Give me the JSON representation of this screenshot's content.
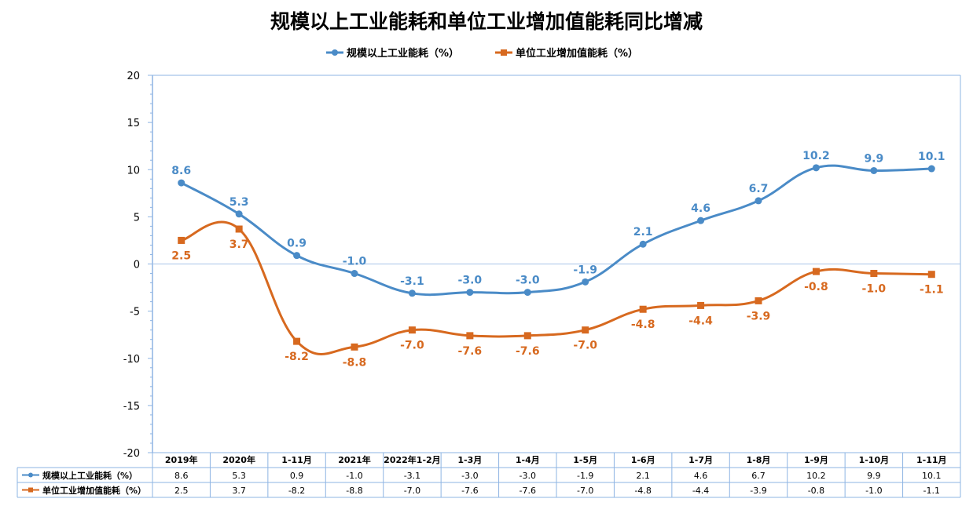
{
  "chart_data": {
    "type": "line",
    "title": "规模以上工业能耗和单位工业增加值能耗同比增减",
    "categories": [
      "2019年",
      "2020年",
      "1-11月",
      "2021年",
      "2022年1-2月",
      "1-3月",
      "1-4月",
      "1-5月",
      "1-6月",
      "1-7月",
      "1-8月",
      "1-9月",
      "1-10月",
      "1-11月"
    ],
    "series": [
      {
        "name": "规模以上工业能耗（%）",
        "color": "#4A8BC7",
        "marker": "circle",
        "values": [
          8.6,
          5.3,
          0.9,
          -1.0,
          -3.1,
          -3.0,
          -3.0,
          -1.9,
          2.1,
          4.6,
          6.7,
          10.2,
          9.9,
          10.1
        ],
        "labels": [
          "8.6",
          "5.3",
          "0.9",
          "-1.0",
          "-3.1",
          "-3.0",
          "-3.0",
          "-1.9",
          "2.1",
          "4.6",
          "6.7",
          "10.2",
          "9.9",
          "10.1"
        ]
      },
      {
        "name": "单位工业增加值能耗（%）",
        "color": "#D7691F",
        "marker": "square",
        "values": [
          2.5,
          3.7,
          -8.2,
          -8.8,
          -7.0,
          -7.6,
          -7.6,
          -7.0,
          -4.8,
          -4.4,
          -3.9,
          -0.8,
          -1.0,
          -1.1
        ],
        "labels": [
          "2.5",
          "3.7",
          "-8.2",
          "-8.8",
          "-7.0",
          "-7.6",
          "-7.6",
          "-7.0",
          "-4.8",
          "-4.4",
          "-3.9",
          "-0.8",
          "-1.0",
          "-1.1"
        ]
      }
    ],
    "ylim": [
      -20,
      20
    ],
    "yticks": [
      -20,
      -15,
      -10,
      -5,
      0,
      5,
      10,
      15,
      20
    ],
    "ytick_labels": [
      "-20",
      "-15",
      "-10",
      "-5",
      "0",
      "5",
      "10",
      "15",
      "20"
    ],
    "legend_position": "top",
    "data_table": {
      "rows": [
        {
          "name": "规模以上工业能耗（%）",
          "cells": [
            "8.6",
            "5.3",
            "0.9",
            "-1.0",
            "-3.1",
            "-3.0",
            "-3.0",
            "-1.9",
            "2.1",
            "4.6",
            "6.7",
            "10.2",
            "9.9",
            "10.1"
          ]
        },
        {
          "name": "单位工业增加值能耗（%）",
          "cells": [
            "2.5",
            "3.7",
            "-8.2",
            "-8.8",
            "-7.0",
            "-7.6",
            "-7.6",
            "-7.0",
            "-4.8",
            "-4.4",
            "-3.9",
            "-0.8",
            "-1.0",
            "-1.1"
          ]
        }
      ]
    },
    "grid": false,
    "colors": {
      "axis": "#8EB4E3",
      "zero_line": "#A9C4E8",
      "table_border": "#8EB4E3",
      "title_text": "#000000",
      "tick_text": "#000000"
    }
  }
}
